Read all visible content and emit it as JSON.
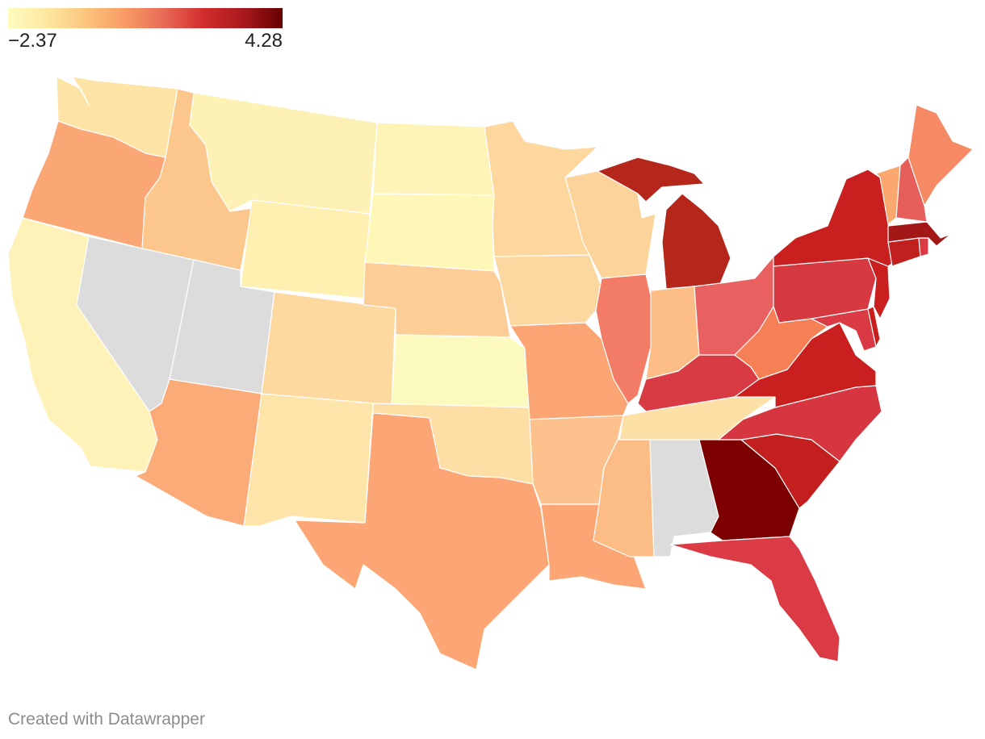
{
  "legend": {
    "min_label": "−2.37",
    "max_label": "4.28",
    "min": -2.37,
    "max": 4.28,
    "gradient": [
      "#fefbc0",
      "#fde7a0",
      "#fcc47c",
      "#f89a64",
      "#e86856",
      "#d12c2c",
      "#a9191d",
      "#640000"
    ]
  },
  "no_data_color": "#dcdcdc",
  "credit": "Created with Datawrapper",
  "states": [
    {
      "id": "WA",
      "color": "#fde4a6"
    },
    {
      "id": "OR",
      "color": "#fba675"
    },
    {
      "id": "CA",
      "color": "#fef2b8"
    },
    {
      "id": "NV",
      "color": "#dcdcdc"
    },
    {
      "id": "ID",
      "color": "#fcc78d"
    },
    {
      "id": "MT",
      "color": "#fef1b5"
    },
    {
      "id": "WY",
      "color": "#fef0b1"
    },
    {
      "id": "UT",
      "color": "#dcdcdc"
    },
    {
      "id": "AZ",
      "color": "#fbab78"
    },
    {
      "id": "CO",
      "color": "#fdd9a0"
    },
    {
      "id": "NM",
      "color": "#fde5aa"
    },
    {
      "id": "ND",
      "color": "#fef4b8"
    },
    {
      "id": "SD",
      "color": "#fef7b8"
    },
    {
      "id": "NE",
      "color": "#fccd96"
    },
    {
      "id": "KS",
      "color": "#fdfabf"
    },
    {
      "id": "OK",
      "color": "#fddfa6"
    },
    {
      "id": "TX",
      "color": "#fba674"
    },
    {
      "id": "MN",
      "color": "#fdd79d"
    },
    {
      "id": "IA",
      "color": "#fcd8a1"
    },
    {
      "id": "MO",
      "color": "#fba474"
    },
    {
      "id": "AR",
      "color": "#fcc18c"
    },
    {
      "id": "LA",
      "color": "#fba674"
    },
    {
      "id": "WI",
      "color": "#fcd39b"
    },
    {
      "id": "IL",
      "color": "#f37c66"
    },
    {
      "id": "MI",
      "color": "#b5261b"
    },
    {
      "id": "IN",
      "color": "#fcbd86"
    },
    {
      "id": "OH",
      "color": "#e86060"
    },
    {
      "id": "KY",
      "color": "#d93b45"
    },
    {
      "id": "TN",
      "color": "#fde0a5"
    },
    {
      "id": "MS",
      "color": "#fcbc86"
    },
    {
      "id": "AL",
      "color": "#dcdcdc"
    },
    {
      "id": "GA",
      "color": "#7c0000"
    },
    {
      "id": "FL",
      "color": "#db3b44"
    },
    {
      "id": "SC",
      "color": "#c41f1f"
    },
    {
      "id": "NC",
      "color": "#d6363f"
    },
    {
      "id": "VA",
      "color": "#c9201f"
    },
    {
      "id": "WV",
      "color": "#f68056"
    },
    {
      "id": "MD",
      "color": "#d93a44"
    },
    {
      "id": "DE",
      "color": "#c81e1e"
    },
    {
      "id": "PA",
      "color": "#d63a40"
    },
    {
      "id": "NJ",
      "color": "#c91f1f"
    },
    {
      "id": "NY",
      "color": "#c91f1f"
    },
    {
      "id": "CT",
      "color": "#c2201e"
    },
    {
      "id": "RI",
      "color": "#d93a44"
    },
    {
      "id": "MA",
      "color": "#a31816"
    },
    {
      "id": "VT",
      "color": "#fba86f"
    },
    {
      "id": "NH",
      "color": "#e65e5a"
    },
    {
      "id": "ME",
      "color": "#f68a64"
    }
  ]
}
